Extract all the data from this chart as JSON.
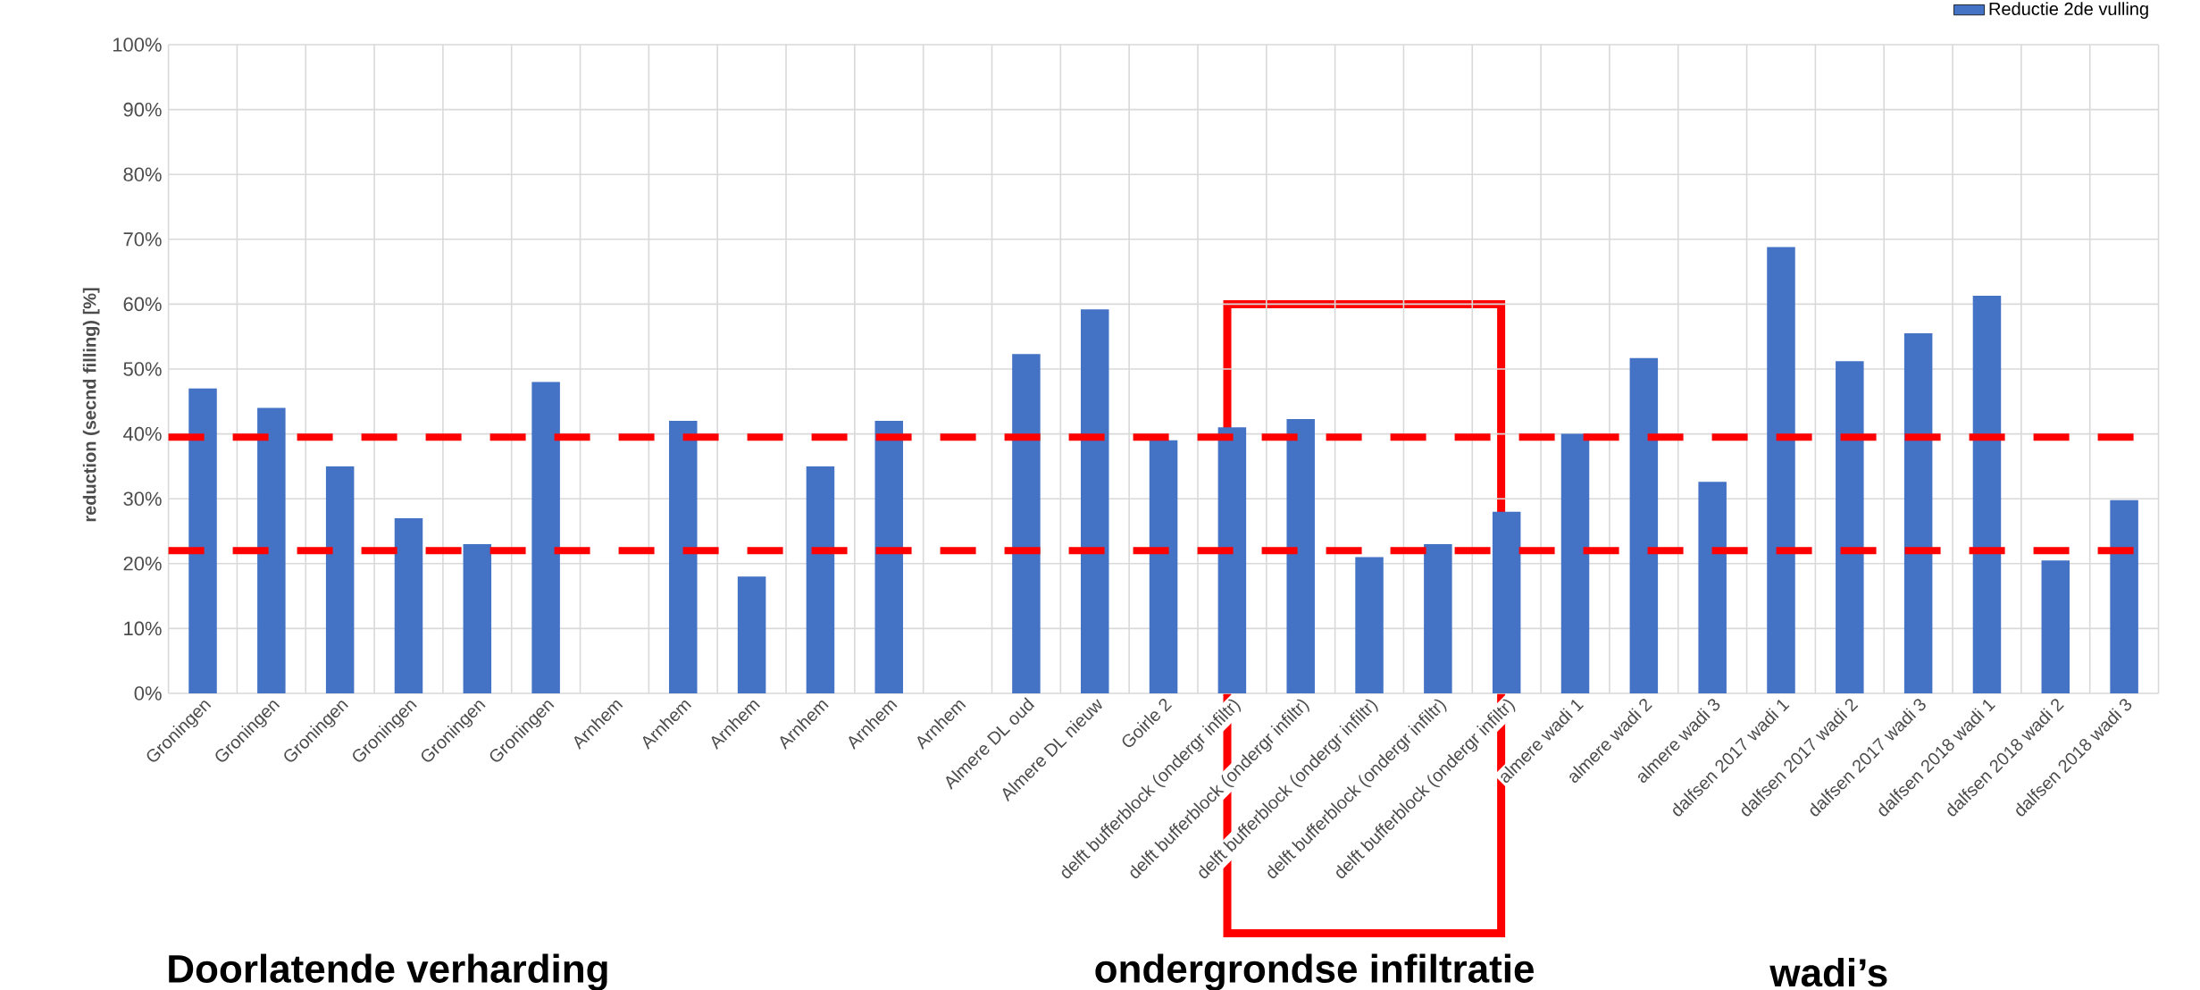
{
  "chart_data": {
    "type": "bar",
    "categories": [
      "Groningen",
      "Groningen",
      "Groningen",
      "Groningen",
      "Groningen",
      "Groningen",
      "Arnhem",
      "Arnhem",
      "Arnhem",
      "Arnhem",
      "Arnhem",
      "Arnhem",
      "Almere DL oud",
      "Almere DL nieuw",
      "Goirle 2",
      "delft bufferblock (ondergr infiltr)",
      "delft bufferblock (ondergr infiltr)",
      "delft bufferblock (ondergr infiltr)",
      "delft bufferblock (ondergr infiltr)",
      "delft bufferblock (ondergr infiltr)",
      "almere wadi 1",
      "almere wadi 2",
      "almere wadi 3",
      "dalfsen 2017 wadi 1",
      "dalfsen 2017 wadi 2",
      "dalfsen 2017 wadi 3",
      "dalfsen 2018 wadi 1",
      "dalfsen 2018 wadi 2",
      "dalfsen 2018 wadi 3"
    ],
    "series": [
      {
        "name": "Reductie 2de vulling",
        "color": "#4472c4",
        "values": [
          47,
          44,
          35,
          27,
          23,
          48,
          null,
          42,
          18,
          35,
          42,
          null,
          52.3,
          59.2,
          39,
          41,
          42.3,
          21,
          23,
          28,
          40,
          51.7,
          32.6,
          68.8,
          51.2,
          55.5,
          61.3,
          20.5,
          29.8
        ]
      }
    ],
    "ylabel": "reduction (secnd filling) [%]",
    "ylim": [
      0,
      100
    ],
    "yticks": [
      {
        "value": 0,
        "label": "0%"
      },
      {
        "value": 10,
        "label": "10%"
      },
      {
        "value": 20,
        "label": "20%"
      },
      {
        "value": 30,
        "label": "30%"
      },
      {
        "value": 40,
        "label": "40%"
      },
      {
        "value": 50,
        "label": "50%"
      },
      {
        "value": 60,
        "label": "60%"
      },
      {
        "value": 70,
        "label": "70%"
      },
      {
        "value": 80,
        "label": "80%"
      },
      {
        "value": 90,
        "label": "90%"
      },
      {
        "value": 100,
        "label": "100%"
      }
    ],
    "ref_lines": [
      {
        "axis": "y",
        "value": 39.5,
        "color": "#ff0000",
        "line_style": "dashed"
      },
      {
        "axis": "y",
        "value": 22,
        "color": "#ff0000",
        "line_style": "dashed"
      }
    ],
    "annotations": [
      "Doorlatende verharding",
      "ondergrondse infiltratie",
      "wadi’s"
    ],
    "grid": true,
    "legend": "top right"
  }
}
